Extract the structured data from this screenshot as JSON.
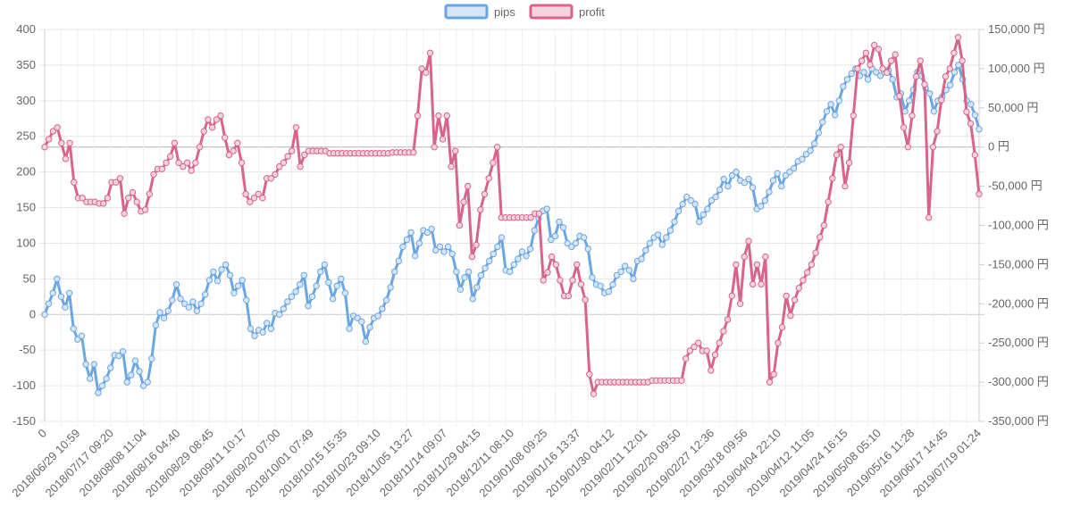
{
  "colors": {
    "pips": "#6aa6e4",
    "pips_fill": "#d6e6f7",
    "profit": "#d9648a",
    "profit_fill": "#f3d3de",
    "grid": "#e6e6e6",
    "axis_text": "#666666",
    "zero_line": "#b0b0b0"
  },
  "legend": {
    "pips": "pips",
    "profit": "profit"
  },
  "chart_data": {
    "type": "line",
    "title": "",
    "legend_position": "top",
    "grid": true,
    "x_tick_labels": [
      "0",
      "2018/06/29 10:59",
      "2018/07/17 09:20",
      "2018/08/08 11:04",
      "2018/08/16 04:40",
      "2018/08/29 08:45",
      "2018/09/11 10:17",
      "2018/09/20 07:00",
      "2018/10/01 07:49",
      "2018/10/15 15:35",
      "2018/10/23 09:10",
      "2018/11/05 13:27",
      "2018/11/14 09:07",
      "2018/11/29 04:15",
      "2018/12/11 08:10",
      "2019/01/08 09:25",
      "2019/01/16 13:37",
      "2019/01/30 04:12",
      "2019/02/11 12:01",
      "2019/02/20 09:50",
      "2019/02/27 12:36",
      "2019/03/18 09:56",
      "2019/04/04 22:10",
      "2019/04/12 11:05",
      "2019/04/24 16:15",
      "2019/05/08 05:10",
      "2019/05/16 11:28",
      "2019/06/17 14:45",
      "2019/07/19 01:24"
    ],
    "y_left": {
      "ylim": [
        -150,
        400
      ],
      "ticks": [
        -150,
        -100,
        -50,
        0,
        50,
        100,
        150,
        200,
        250,
        300,
        350,
        400
      ]
    },
    "y_right": {
      "ylim": [
        -350000,
        150000
      ],
      "ticks": [
        -350000,
        -300000,
        -250000,
        -200000,
        -150000,
        -100000,
        -50000,
        0,
        50000,
        100000,
        150000
      ],
      "unit": "円"
    },
    "series": [
      {
        "name": "pips",
        "axis": "left",
        "values": [
          0,
          15,
          30,
          50,
          25,
          10,
          30,
          -20,
          -35,
          -30,
          -70,
          -90,
          -70,
          -110,
          -100,
          -90,
          -75,
          -57,
          -58,
          -52,
          -95,
          -85,
          -65,
          -80,
          -100,
          -95,
          -62,
          -15,
          3,
          -5,
          5,
          20,
          42,
          22,
          15,
          10,
          18,
          5,
          15,
          28,
          48,
          60,
          47,
          63,
          70,
          55,
          30,
          40,
          48,
          20,
          -20,
          -30,
          -22,
          -25,
          -12,
          -20,
          2,
          0,
          8,
          18,
          25,
          32,
          42,
          55,
          12,
          25,
          40,
          60,
          70,
          45,
          22,
          40,
          50,
          30,
          -20,
          -2,
          -5,
          -10,
          -38,
          -18,
          -5,
          -2,
          8,
          20,
          38,
          60,
          75,
          95,
          105,
          115,
          82,
          100,
          118,
          115,
          120,
          90,
          95,
          88,
          95,
          85,
          60,
          35,
          52,
          60,
          22,
          38,
          55,
          65,
          75,
          85,
          95,
          108,
          62,
          60,
          70,
          78,
          88,
          82,
          92,
          118,
          135,
          145,
          148,
          105,
          110,
          130,
          122,
          100,
          95,
          100,
          110,
          108,
          92,
          52,
          42,
          40,
          30,
          32,
          42,
          55,
          60,
          68,
          62,
          50,
          75,
          78,
          90,
          100,
          108,
          112,
          98,
          108,
          118,
          130,
          145,
          155,
          165,
          160,
          155,
          130,
          140,
          148,
          160,
          165,
          175,
          190,
          180,
          195,
          200,
          188,
          185,
          190,
          178,
          148,
          152,
          160,
          172,
          188,
          198,
          180,
          195,
          200,
          205,
          215,
          218,
          225,
          230,
          240,
          255,
          270,
          285,
          295,
          280,
          300,
          320,
          330,
          338,
          345,
          335,
          340,
          330,
          345,
          340,
          335,
          340,
          343,
          330,
          305,
          310,
          285,
          300,
          315,
          340,
          335,
          318,
          310,
          285,
          300,
          305,
          315,
          322,
          340,
          350,
          330,
          300,
          295,
          280,
          260
        ]
      },
      {
        "name": "profit",
        "axis": "right",
        "values": [
          0,
          10000,
          20000,
          25000,
          5000,
          -15000,
          5000,
          -45000,
          -65000,
          -65000,
          -70000,
          -70000,
          -70000,
          -72000,
          -72000,
          -65000,
          -45000,
          -45000,
          -40000,
          -85000,
          -65000,
          -58000,
          -70000,
          -82000,
          -80000,
          -60000,
          -35000,
          -28000,
          -28000,
          -20000,
          -12000,
          5000,
          -20000,
          -25000,
          -20000,
          -30000,
          -20000,
          0,
          20000,
          35000,
          25000,
          35000,
          40000,
          12000,
          -10000,
          -5000,
          5000,
          -20000,
          -60000,
          -70000,
          -65000,
          -60000,
          -65000,
          -40000,
          -40000,
          -35000,
          -25000,
          -20000,
          -12000,
          -5000,
          25000,
          -25000,
          -10000,
          -5000,
          -5000,
          -5000,
          -5000,
          -5000,
          -8000,
          -8000,
          -8000,
          -8000,
          -8000,
          -8000,
          -8000,
          -8000,
          -8000,
          -8000,
          -8000,
          -8000,
          -8000,
          -8000,
          -8000,
          -7000,
          -7000,
          -7000,
          -7000,
          -7000,
          -7000,
          40000,
          100000,
          95000,
          120000,
          0,
          40000,
          10000,
          40000,
          -25000,
          -5000,
          -100000,
          -70000,
          -50000,
          -140000,
          -125000,
          -80000,
          -60000,
          -40000,
          -20000,
          0,
          -90000,
          -90000,
          -90000,
          -90000,
          -90000,
          -90000,
          -90000,
          -90000,
          -85000,
          -85000,
          -170000,
          -160000,
          -140000,
          -150000,
          -170000,
          -190000,
          -190000,
          -170000,
          -150000,
          -175000,
          -195000,
          -290000,
          -315000,
          -300000,
          -300000,
          -300000,
          -300000,
          -300000,
          -300000,
          -300000,
          -300000,
          -300000,
          -300000,
          -300000,
          -300000,
          -300000,
          -298000,
          -298000,
          -298000,
          -298000,
          -298000,
          -298000,
          -298000,
          -298000,
          -270000,
          -260000,
          -255000,
          -250000,
          -260000,
          -260000,
          -285000,
          -265000,
          -250000,
          -235000,
          -220000,
          -190000,
          -150000,
          -200000,
          -140000,
          -120000,
          -175000,
          -150000,
          -175000,
          -140000,
          -300000,
          -290000,
          -250000,
          -230000,
          -190000,
          -215000,
          -195000,
          -180000,
          -170000,
          -160000,
          -150000,
          -135000,
          -115000,
          -100000,
          -70000,
          -40000,
          -10000,
          0,
          -50000,
          -20000,
          40000,
          100000,
          110000,
          120000,
          105000,
          130000,
          125000,
          100000,
          95000,
          110000,
          118000,
          65000,
          25000,
          0,
          40000,
          90000,
          110000,
          80000,
          -90000,
          0,
          20000,
          60000,
          90000,
          100000,
          120000,
          140000,
          110000,
          45000,
          30000,
          -10000,
          -60000
        ]
      }
    ]
  }
}
